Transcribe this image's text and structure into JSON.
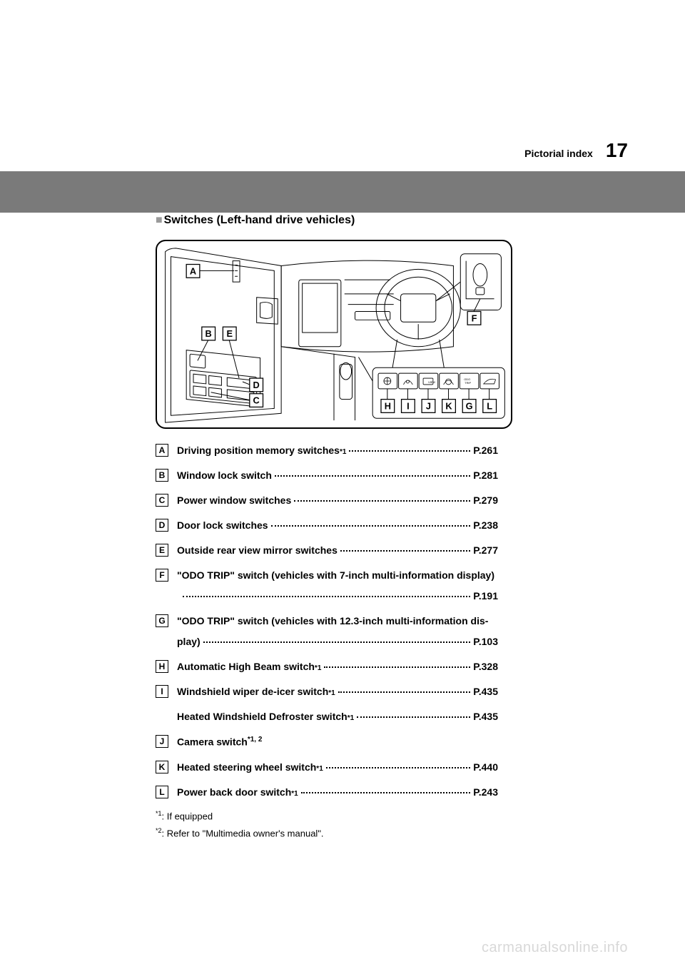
{
  "header": {
    "section_name": "Pictorial index",
    "page_number": "17"
  },
  "subtitle": "Switches (Left-hand drive vehicles)",
  "diagram": {
    "labels": [
      "A",
      "B",
      "C",
      "D",
      "E",
      "F",
      "G",
      "H",
      "I",
      "J",
      "K",
      "L"
    ],
    "button_row": [
      "H",
      "I",
      "J",
      "K",
      "G",
      "L"
    ],
    "odo_label": "ODO\nTRIP",
    "view_label": "VIEW"
  },
  "items": [
    {
      "letter": "A",
      "label": "Driving position memory switches",
      "sup": "*1",
      "page": "P.261"
    },
    {
      "letter": "B",
      "label": "Window lock switch",
      "sup": "",
      "page": "P.281"
    },
    {
      "letter": "C",
      "label": "Power window switches",
      "sup": "",
      "page": "P.279"
    },
    {
      "letter": "D",
      "label": "Door lock switches",
      "sup": "",
      "page": "P.238"
    },
    {
      "letter": "E",
      "label": "Outside rear view mirror switches",
      "sup": "",
      "page": "P.277"
    },
    {
      "letter": "F",
      "label": "\"ODO TRIP\" switch (vehicles with 7-inch multi-information display)",
      "sup": "",
      "page": "P.191",
      "multiline": true
    },
    {
      "letter": "G",
      "label": "\"ODO TRIP\" switch (vehicles with 12.3-inch multi-information display)",
      "sup": "",
      "page": "P.103",
      "wrap_label": true
    },
    {
      "letter": "H",
      "label": "Automatic High Beam switch",
      "sup": "*1",
      "page": "P.328"
    },
    {
      "letter": "I",
      "label": "Windshield wiper de-icer switch",
      "sup": "*1",
      "page": "P.435",
      "extra": {
        "label": "Heated Windshield Defroster switch",
        "sup": "*1",
        "page": "P.435"
      }
    },
    {
      "letter": "J",
      "label": "Camera switch",
      "sup": "*1, 2",
      "page": "",
      "no_page": true
    },
    {
      "letter": "K",
      "label": "Heated steering wheel switch",
      "sup": "*1",
      "page": "P.440"
    },
    {
      "letter": "L",
      "label": "Power back door switch",
      "sup": "*1",
      "page": "P.243"
    }
  ],
  "footnotes": [
    {
      "sup": "*1",
      "text": ": If equipped"
    },
    {
      "sup": "*2",
      "text": ": Refer to \"Multimedia owner's manual\"."
    }
  ],
  "watermark": "carmanualsonline.info",
  "colors": {
    "gray_band": "#7a7a7a",
    "marker_gray": "#9a9a9a",
    "watermark_gray": "#d8d8d8"
  }
}
